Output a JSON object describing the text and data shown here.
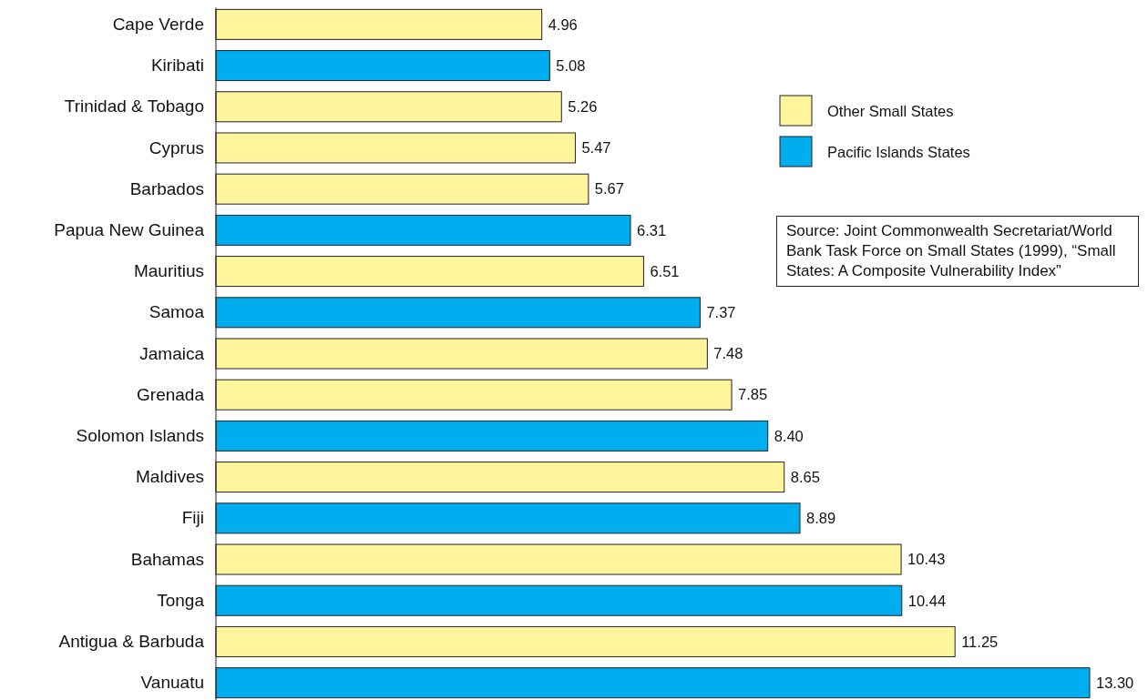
{
  "chart_data": {
    "type": "bar",
    "orientation": "horizontal",
    "relative": false,
    "categories": [
      "Cape Verde",
      "Kiribati",
      "Trinidad & Tobago",
      "Cyprus",
      "Barbados",
      "Papua New Guinea",
      "Mauritius",
      "Samoa",
      "Jamaica",
      "Grenada",
      "Solomon Islands",
      "Maldives",
      "Fiji",
      "Bahamas",
      "Tonga",
      "Antigua & Barbuda",
      "Vanuatu"
    ],
    "series": [
      {
        "name": "Other Small States",
        "color": "#fff59d",
        "values": [
          4.96,
          null,
          5.26,
          5.47,
          5.67,
          null,
          6.51,
          null,
          7.48,
          7.85,
          null,
          8.65,
          null,
          10.43,
          null,
          11.25,
          null
        ],
        "value_labels": [
          "4.96",
          null,
          "5.26",
          "5.47",
          "5.67",
          null,
          "6.51",
          null,
          "7.48",
          "7.85",
          null,
          "8.65",
          null,
          "10.43",
          null,
          "11.25",
          null
        ]
      },
      {
        "name": "Pacific Islands States",
        "color": "#00aeef",
        "values": [
          null,
          5.08,
          null,
          null,
          null,
          6.31,
          null,
          7.37,
          null,
          null,
          8.4,
          null,
          8.89,
          null,
          10.44,
          null,
          13.3
        ],
        "value_labels": [
          null,
          "5.08",
          null,
          null,
          null,
          "6.31",
          null,
          "7.37",
          null,
          null,
          "8.40",
          null,
          "8.89",
          null,
          "10.44",
          null,
          "13.30"
        ]
      }
    ],
    "legend": "top right",
    "annotations": [
      "Source: Joint Commonwealth Secretariat/World Bank Task Force on Small States (1999), “Small States: A Composite Vulnerability Index”"
    ]
  }
}
